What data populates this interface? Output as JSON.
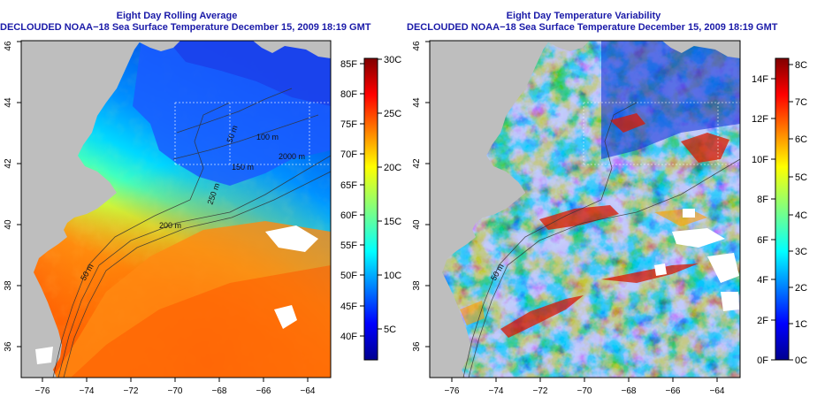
{
  "left_panel": {
    "title_line1": "Eight Day Rolling Average",
    "title_line2": "DECLOUDED NOAA−18 Sea Surface Temperature December 15, 2009 18:19 GMT",
    "x_ticks": [
      "−76",
      "−74",
      "−72",
      "−70",
      "−68",
      "−66",
      "−64"
    ],
    "y_ticks": [
      "36",
      "38",
      "40",
      "42",
      "44",
      "46"
    ],
    "contour_labels": [
      "200 m",
      "2000 m",
      "100 m",
      "50 m",
      "150 m",
      "250 m",
      "50 m"
    ],
    "colorbar": {
      "fahrenheit": [
        "40F",
        "45F",
        "50F",
        "55F",
        "60F",
        "65F",
        "70F",
        "75F",
        "80F",
        "85F"
      ],
      "celsius": [
        "5C",
        "10C",
        "15C",
        "20C",
        "25C",
        "30C"
      ]
    }
  },
  "right_panel": {
    "title_line1": "Eight Day Temperature Variability",
    "title_line2": "DECLOUDED NOAA−18 Sea Surface Temperature December 15, 2009 18:19 GMT",
    "x_ticks": [
      "−76",
      "−74",
      "−72",
      "−70",
      "−68",
      "−66",
      "−64"
    ],
    "y_ticks": [
      "36",
      "38",
      "40",
      "42",
      "44",
      "46"
    ],
    "contour_labels": [
      "50 m"
    ],
    "colorbar": {
      "fahrenheit": [
        "0F",
        "2F",
        "4F",
        "6F",
        "8F",
        "10F",
        "12F",
        "14F"
      ],
      "celsius": [
        "0C",
        "1C",
        "2C",
        "3C",
        "4C",
        "5C",
        "6C",
        "7C",
        "8C"
      ]
    }
  },
  "colors": {
    "title": "#1a1aa8",
    "land": "#bebebe",
    "jet": [
      "#00008f",
      "#0000ff",
      "#0080ff",
      "#00ffff",
      "#80ff80",
      "#ffff00",
      "#ff8000",
      "#ff0000",
      "#800000"
    ]
  }
}
